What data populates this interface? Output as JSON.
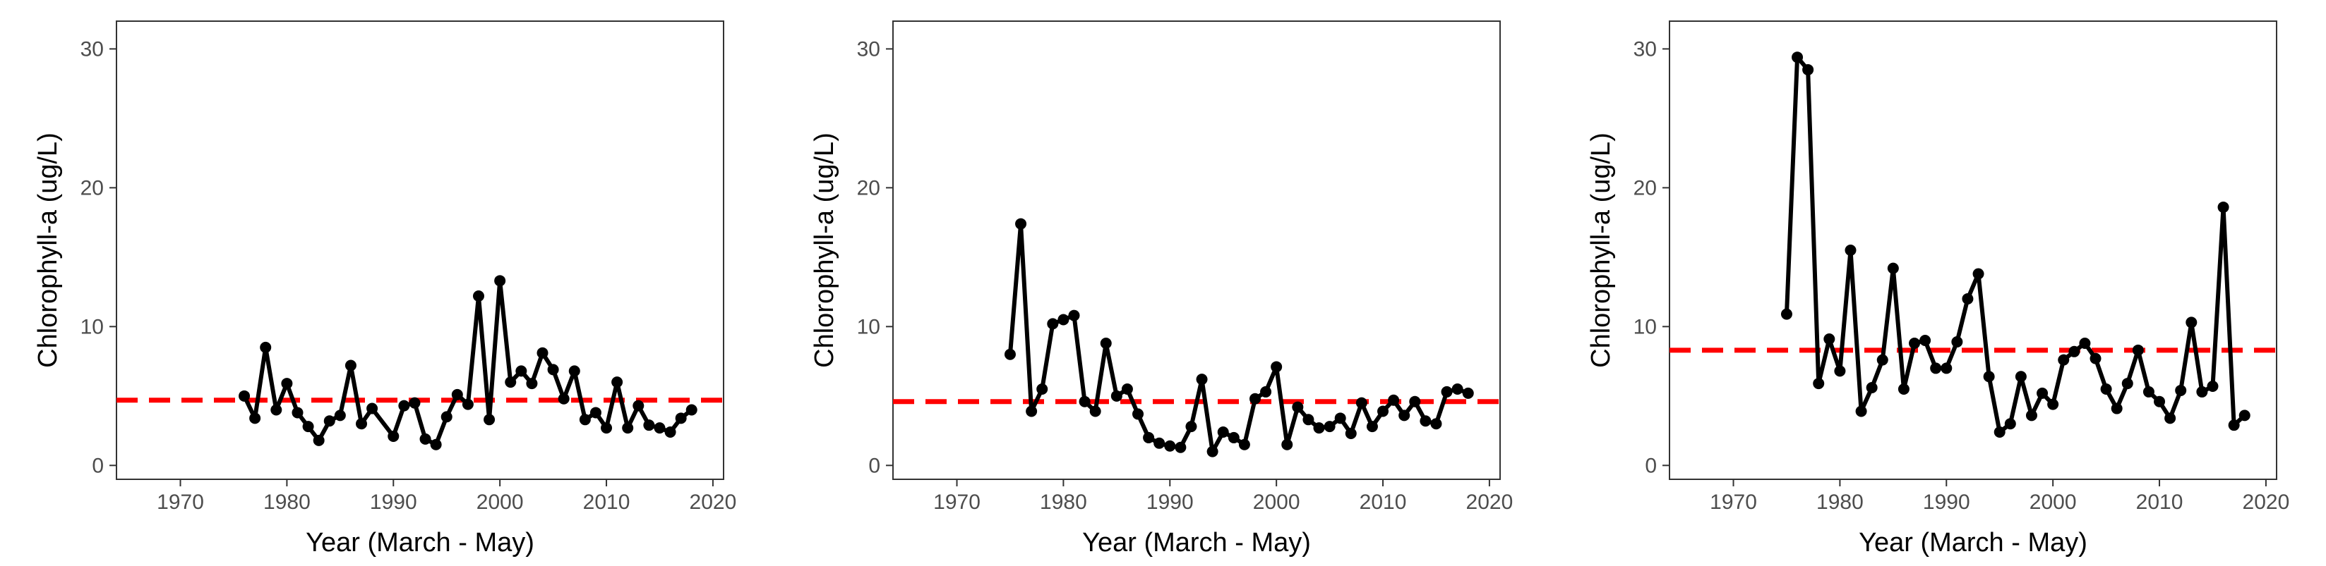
{
  "chart_data": [
    {
      "type": "line",
      "xlabel": "Year (March - May)",
      "ylabel": "Chlorophyll-a (ug/L)",
      "xlim": [
        1964,
        2021
      ],
      "ylim": [
        -1,
        32
      ],
      "xticks": [
        "1970",
        "1980",
        "1990",
        "2000",
        "2010",
        "2020"
      ],
      "yticks": [
        "0",
        "10",
        "20",
        "30"
      ],
      "grid": false,
      "line_color": "#000000",
      "reference_line": {
        "value": 4.7,
        "color": "#ff0000",
        "style": "dashed"
      },
      "series": [
        {
          "x": [
            1976,
            1977,
            1978,
            1979,
            1980,
            1981,
            1982,
            1983,
            1984,
            1985,
            1986,
            1987,
            1988,
            1990,
            1991,
            1992,
            1993,
            1994,
            1995,
            1996,
            1997,
            1998,
            1999,
            2000,
            2001,
            2002,
            2003,
            2004,
            2005,
            2006,
            2007,
            2008,
            2009,
            2010,
            2011,
            2012,
            2013,
            2014,
            2015,
            2016,
            2017,
            2018
          ],
          "y": [
            5.0,
            3.4,
            8.5,
            4.0,
            5.9,
            3.8,
            2.8,
            1.8,
            3.2,
            3.6,
            7.2,
            3.0,
            4.1,
            2.1,
            4.3,
            4.5,
            1.9,
            1.5,
            3.5,
            5.1,
            4.4,
            12.2,
            3.3,
            13.3,
            6.0,
            6.8,
            5.9,
            8.1,
            6.9,
            4.8,
            6.8,
            3.3,
            3.8,
            2.7,
            6.0,
            2.7,
            4.3,
            2.9,
            2.7,
            2.4,
            3.4,
            4.0
          ]
        }
      ]
    },
    {
      "type": "line",
      "xlabel": "Year (March - May)",
      "ylabel": "Chlorophyll-a (ug/L)",
      "xlim": [
        1964,
        2021
      ],
      "ylim": [
        -1,
        32
      ],
      "xticks": [
        "1970",
        "1980",
        "1990",
        "2000",
        "2010",
        "2020"
      ],
      "yticks": [
        "0",
        "10",
        "20",
        "30"
      ],
      "grid": false,
      "line_color": "#000000",
      "reference_line": {
        "value": 4.6,
        "color": "#ff0000",
        "style": "dashed"
      },
      "series": [
        {
          "x": [
            1975,
            1976,
            1977,
            1978,
            1979,
            1980,
            1981,
            1982,
            1983,
            1984,
            1985,
            1986,
            1987,
            1988,
            1989,
            1990,
            1991,
            1992,
            1993,
            1994,
            1995,
            1996,
            1997,
            1998,
            1999,
            2000,
            2001,
            2002,
            2003,
            2004,
            2005,
            2006,
            2007,
            2008,
            2009,
            2010,
            2011,
            2012,
            2013,
            2014,
            2015,
            2016,
            2017,
            2018
          ],
          "y": [
            8.0,
            17.4,
            3.9,
            5.5,
            10.2,
            10.5,
            10.8,
            4.6,
            3.9,
            8.8,
            5.0,
            5.5,
            3.7,
            2.0,
            1.6,
            1.4,
            1.3,
            2.8,
            6.2,
            1.0,
            2.4,
            2.0,
            1.5,
            4.8,
            5.3,
            7.1,
            1.5,
            4.2,
            3.3,
            2.7,
            2.8,
            3.4,
            2.3,
            4.5,
            2.8,
            3.9,
            4.7,
            3.6,
            4.6,
            3.2,
            3.0,
            5.3,
            5.5,
            5.2
          ]
        }
      ]
    },
    {
      "type": "line",
      "xlabel": "Year (March - May)",
      "ylabel": "Chlorophyll-a (ug/L)",
      "xlim": [
        1964,
        2021
      ],
      "ylim": [
        -1,
        32
      ],
      "xticks": [
        "1970",
        "1980",
        "1990",
        "2000",
        "2010",
        "2020"
      ],
      "yticks": [
        "0",
        "10",
        "20",
        "30"
      ],
      "grid": false,
      "line_color": "#000000",
      "reference_line": {
        "value": 8.3,
        "color": "#ff0000",
        "style": "dashed"
      },
      "series": [
        {
          "x": [
            1975,
            1976,
            1977,
            1978,
            1979,
            1980,
            1981,
            1982,
            1983,
            1984,
            1985,
            1986,
            1987,
            1988,
            1989,
            1990,
            1991,
            1992,
            1993,
            1994,
            1995,
            1996,
            1997,
            1998,
            1999,
            2000,
            2001,
            2002,
            2003,
            2004,
            2005,
            2006,
            2007,
            2008,
            2009,
            2010,
            2011,
            2012,
            2013,
            2014,
            2015,
            2016,
            2017,
            2018
          ],
          "y": [
            10.9,
            29.4,
            28.5,
            5.9,
            9.1,
            6.8,
            15.5,
            3.9,
            5.6,
            7.6,
            14.2,
            5.5,
            8.8,
            9.0,
            7.0,
            7.0,
            8.9,
            12.0,
            13.8,
            6.4,
            2.4,
            3.0,
            6.4,
            3.6,
            5.2,
            4.4,
            7.6,
            8.2,
            8.8,
            7.7,
            5.5,
            4.1,
            5.9,
            8.3,
            5.3,
            4.6,
            3.4,
            5.4,
            10.3,
            5.3,
            5.7,
            18.6,
            2.9,
            3.6
          ]
        }
      ]
    }
  ]
}
